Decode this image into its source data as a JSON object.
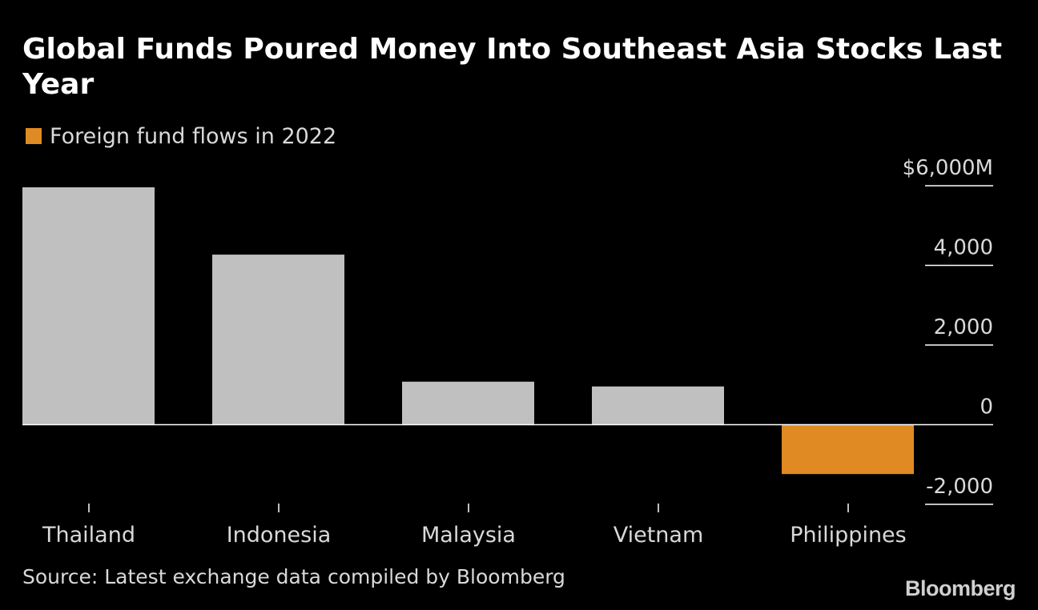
{
  "chart_data": {
    "type": "bar",
    "title": "Global Funds Poured Money Into Southeast Asia Stocks Last Year",
    "legend": "Foreign fund flows in 2022",
    "categories": [
      "Thailand",
      "Indonesia",
      "Malaysia",
      "Vietnam",
      "Philippines"
    ],
    "values": [
      5960,
      4270,
      1080,
      960,
      -1240
    ],
    "ylim": [
      -2000,
      6000
    ],
    "yticks": [
      {
        "value": 6000,
        "label": "$6,000M"
      },
      {
        "value": 4000,
        "label": "4,000"
      },
      {
        "value": 2000,
        "label": "2,000"
      },
      {
        "value": 0,
        "label": "0"
      },
      {
        "value": -2000,
        "label": "-2,000"
      }
    ],
    "colors": {
      "positive": "#c0c0c0",
      "negative": "#e08a24",
      "highlight": "Philippines"
    },
    "y_axis_position": "right",
    "grid": false
  },
  "source": "Source: Latest exchange data compiled by Bloomberg",
  "brand": "Bloomberg"
}
